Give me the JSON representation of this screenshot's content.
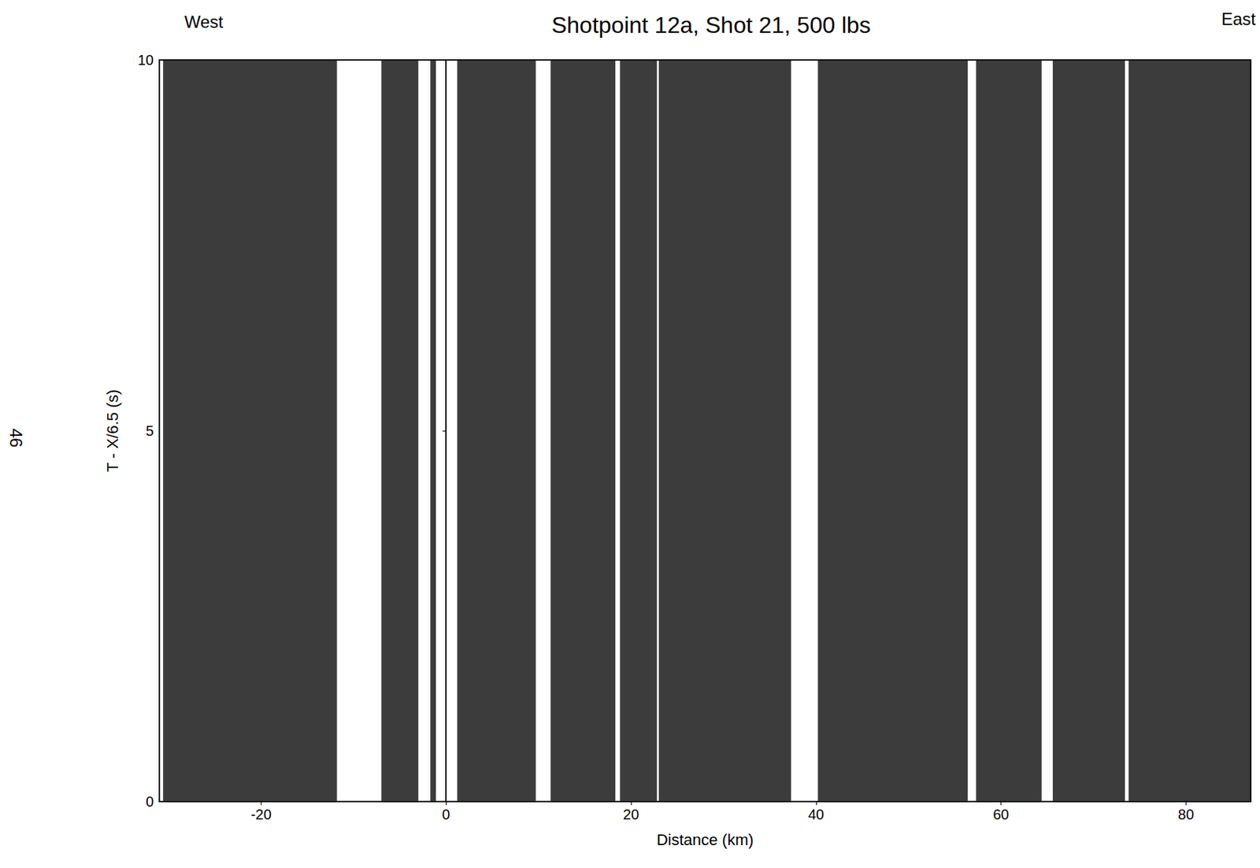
{
  "chart_data": {
    "type": "record_section",
    "title": "Shotpoint 12a, Shot 21, 500 lbs",
    "left_label": "West",
    "right_label": "East",
    "page_number": "46",
    "x_label": "Distance (km)",
    "y_label": "T - X/6.5 (s)",
    "xlim": [
      -31,
      87
    ],
    "xticks": [
      -20,
      0,
      20,
      40,
      60,
      80
    ],
    "ylim": [
      0,
      10
    ],
    "yticks": [
      0,
      5,
      10
    ],
    "color": "#1a1a1a",
    "grid": false,
    "segments": [
      [
        -30.6,
        -11.8
      ],
      [
        -7.0,
        -3.0
      ],
      [
        -1.7,
        -1.1
      ],
      [
        1.2,
        9.7
      ],
      [
        11.3,
        18.3
      ],
      [
        18.8,
        22.8
      ],
      [
        23.0,
        37.3
      ],
      [
        40.2,
        56.4
      ],
      [
        57.3,
        64.4
      ],
      [
        65.6,
        73.4
      ],
      [
        73.8,
        87.0
      ]
    ]
  }
}
